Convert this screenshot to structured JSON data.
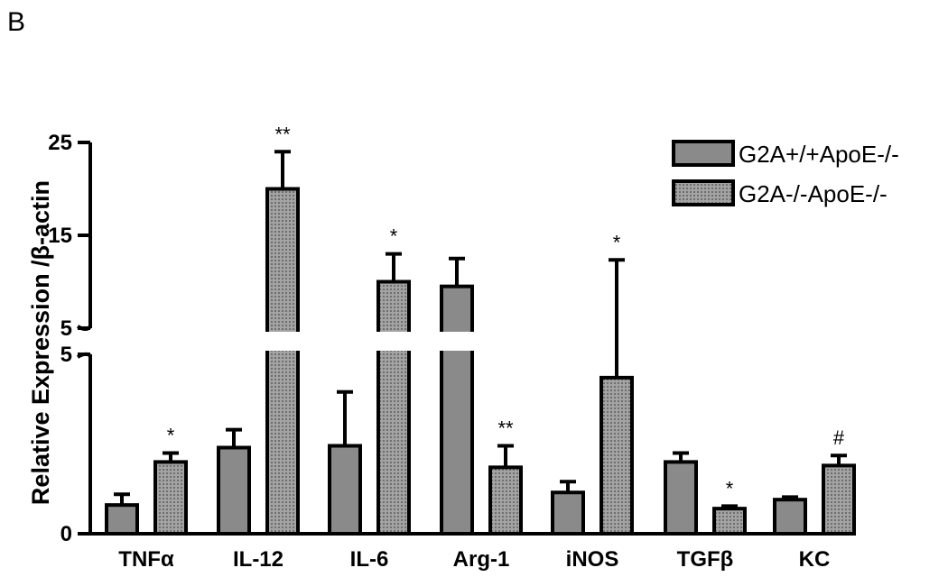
{
  "panel_label": "B",
  "chart_data": {
    "type": "bar",
    "ylabel": "Relative Expression /β-actin",
    "xlabel": "",
    "broken_axis": true,
    "lower_segment": {
      "ylim": [
        0,
        5
      ],
      "ticks": [
        "0",
        "5"
      ]
    },
    "upper_segment": {
      "ylim": [
        5,
        25
      ],
      "ticks": [
        "5",
        "15",
        "25"
      ]
    },
    "categories": [
      "TNFα",
      "IL-12",
      "IL-6",
      "Arg-1",
      "iNOS",
      "TGFβ",
      "KC"
    ],
    "series": [
      {
        "name": "G2A+/+ApoE-/-",
        "color": "#8a8a8a",
        "pattern": "solid",
        "values": [
          0.8,
          2.4,
          2.45,
          9.5,
          1.15,
          2.0,
          0.95
        ],
        "errors": [
          0.3,
          0.5,
          1.5,
          3.0,
          0.3,
          0.25,
          0.07
        ],
        "significance": [
          "",
          "",
          "",
          "",
          "",
          "",
          ""
        ]
      },
      {
        "name": "G2A-/-ApoE-/-",
        "color": "#9a9a9a",
        "pattern": "dotted",
        "values": [
          2.0,
          20.0,
          10.0,
          1.85,
          4.35,
          0.7,
          1.9
        ],
        "errors": [
          0.25,
          4.0,
          3.0,
          0.6,
          8.0,
          0.07,
          0.28
        ],
        "significance": [
          "*",
          "**",
          "*",
          "**",
          "*",
          "*",
          "#"
        ]
      }
    ],
    "legend_position": "top-right"
  }
}
